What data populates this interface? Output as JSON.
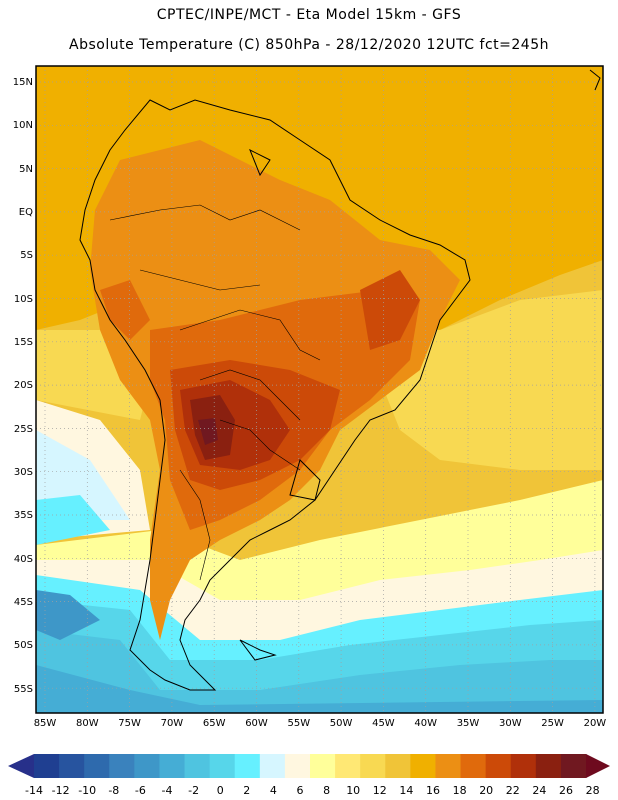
{
  "header": {
    "line1": "CPTEC/INPE/MCT  -   Eta Model 15km  -  GFS",
    "line2": "Absolute Temperature (C) 850hPa - 28/12/2020 12UTC fct=245h"
  },
  "map": {
    "lat_labels": [
      "15N",
      "10N",
      "5N",
      "EQ",
      "5S",
      "10S",
      "15S",
      "20S",
      "25S",
      "30S",
      "35S",
      "40S",
      "45S",
      "50S",
      "55S"
    ],
    "lon_labels": [
      "85W",
      "80W",
      "75W",
      "70W",
      "65W",
      "60W",
      "55W",
      "50W",
      "45W",
      "40W",
      "35W",
      "30W",
      "25W",
      "20W"
    ]
  },
  "legend": {
    "tick_labels": [
      "-14",
      "-12",
      "-10",
      "-8",
      "-6",
      "-4",
      "-2",
      "0",
      "2",
      "4",
      "6",
      "8",
      "10",
      "12",
      "14",
      "16",
      "18",
      "20",
      "22",
      "24",
      "26",
      "28"
    ],
    "colors": [
      "#1f3f91",
      "#27549f",
      "#2e6aad",
      "#3a82bd",
      "#3e97c8",
      "#45add5",
      "#4fc4e0",
      "#57d6ea",
      "#66f0ff",
      "#d6f6ff",
      "#fff7e0",
      "#ffff9a",
      "#ffe874",
      "#f8d952",
      "#f0c438",
      "#f0b000",
      "#ec8f14",
      "#e06a0c",
      "#cc4a08",
      "#b0300a",
      "#8a2010",
      "#701820"
    ],
    "left_arrow_color": "#27308a",
    "right_arrow_color": "#6e0a1e"
  }
}
